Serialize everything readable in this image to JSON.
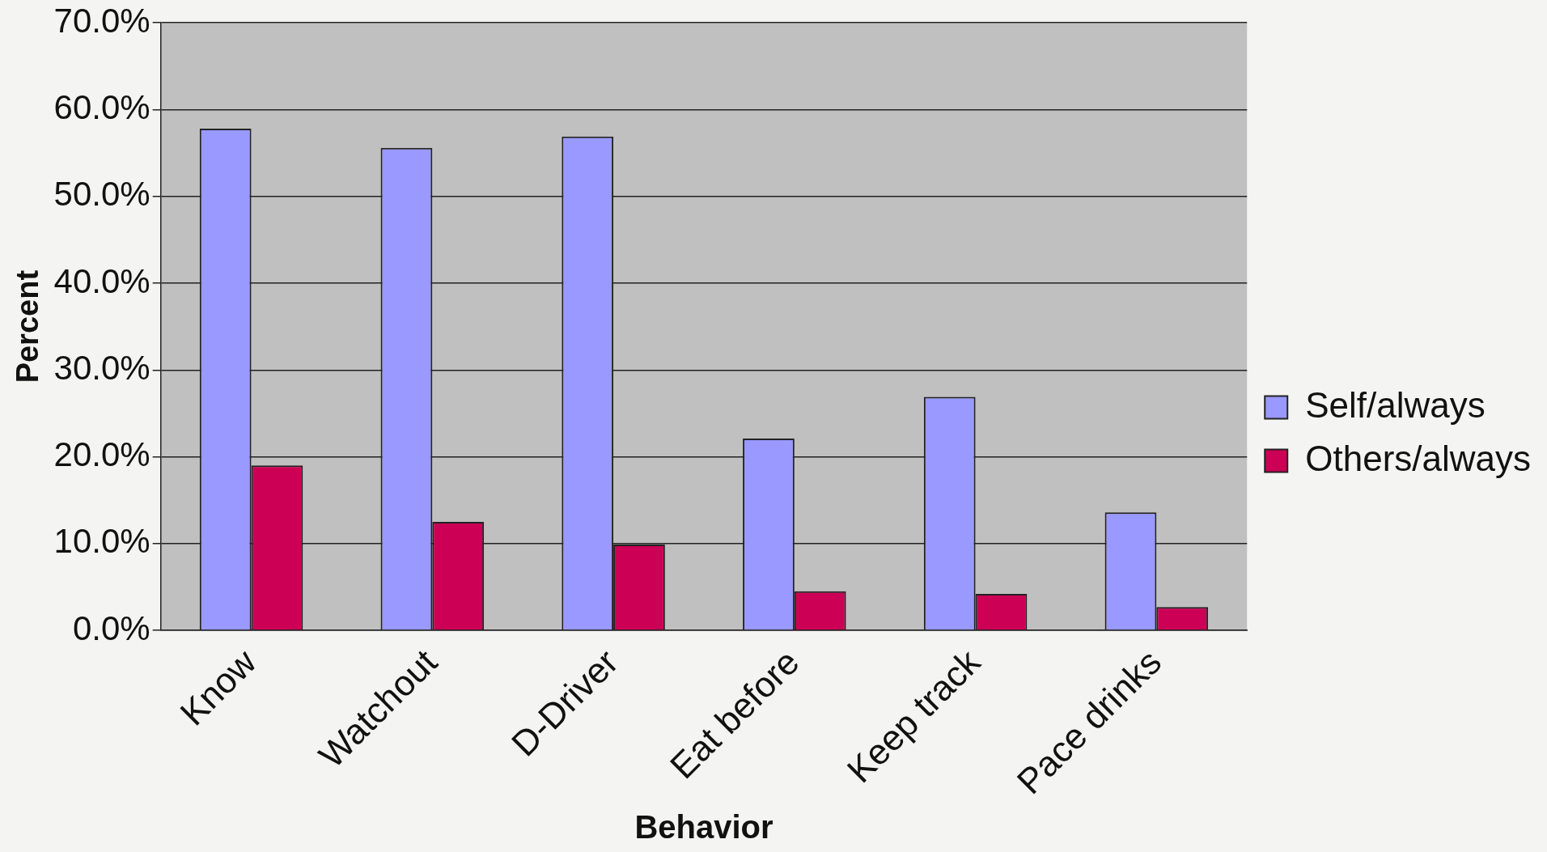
{
  "chart_data": {
    "type": "bar",
    "xlabel": "Behavior",
    "ylabel": "Percent",
    "categories": [
      "Know",
      "Watchout",
      "D-Driver",
      "Eat before",
      "Keep track",
      "Pace drinks"
    ],
    "series": [
      {
        "name": "Self/always",
        "color": "#9999ff",
        "values": [
          57.8,
          55.6,
          56.9,
          22.1,
          26.9,
          13.6
        ]
      },
      {
        "name": "Others/always",
        "color": "#cc0055",
        "values": [
          19.0,
          12.5,
          9.9,
          4.5,
          4.2,
          2.7
        ]
      }
    ],
    "ylim": [
      0,
      70
    ],
    "yticks": [
      {
        "value": 0,
        "label": "0.0%"
      },
      {
        "value": 10,
        "label": "10.0%"
      },
      {
        "value": 20,
        "label": "20.0%"
      },
      {
        "value": 30,
        "label": "30.0%"
      },
      {
        "value": 40,
        "label": "40.0%"
      },
      {
        "value": 50,
        "label": "50.0%"
      },
      {
        "value": 60,
        "label": "60.0%"
      },
      {
        "value": 70,
        "label": "70.0%"
      }
    ],
    "grid": "y",
    "legend": "right"
  }
}
